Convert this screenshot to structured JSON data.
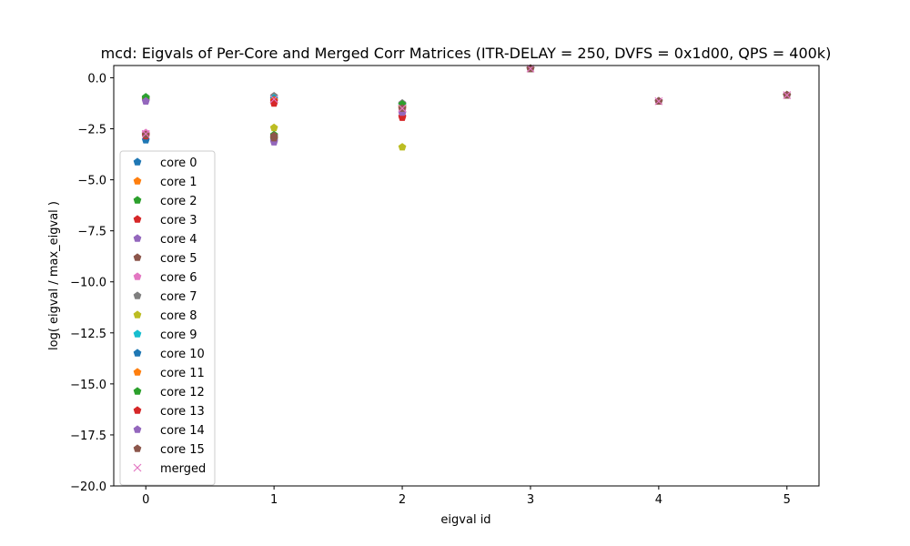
{
  "chart_data": {
    "type": "scatter",
    "title": "mcd: Eigvals of Per-Core and Merged Corr Matrices (ITR-DELAY = 250, DVFS = 0x1d00, QPS = 400k)",
    "xlabel": "eigval id",
    "ylabel": "log( eigval / max_eigval )",
    "xlim": [
      -0.25,
      5.25
    ],
    "ylim": [
      -20,
      0.6
    ],
    "xticks": [
      "0",
      "1",
      "2",
      "3",
      "4",
      "5"
    ],
    "yticks": [
      "0.0",
      "−2.5",
      "−5.0",
      "−7.5",
      "−10.0",
      "−12.5",
      "−15.0",
      "−17.5",
      "−20.0"
    ],
    "grid": false,
    "legend_position": "center-left",
    "series": [
      {
        "name": "core 0",
        "color": "#1f77b4",
        "marker": "pentagon",
        "x": [
          0,
          1,
          2,
          3,
          4,
          5
        ],
        "y": [
          -3.05,
          -2.9,
          -1.5,
          0.45,
          -1.15,
          -0.85
        ]
      },
      {
        "name": "core 1",
        "color": "#ff7f0e",
        "marker": "pentagon",
        "x": [
          0,
          1,
          2,
          3,
          4,
          5
        ],
        "y": [
          -2.75,
          -2.95,
          -1.55,
          0.45,
          -1.15,
          -0.85
        ]
      },
      {
        "name": "core 2",
        "color": "#2ca02c",
        "marker": "pentagon",
        "x": [
          0,
          1,
          2,
          3,
          4,
          5
        ],
        "y": [
          -0.95,
          -2.8,
          -1.3,
          0.45,
          -1.15,
          -0.85
        ]
      },
      {
        "name": "core 3",
        "color": "#d62728",
        "marker": "pentagon",
        "x": [
          0,
          1,
          2,
          3,
          4,
          5
        ],
        "y": [
          -2.85,
          -1.25,
          -1.95,
          0.45,
          -1.15,
          -0.85
        ]
      },
      {
        "name": "core 4",
        "color": "#9467bd",
        "marker": "pentagon",
        "x": [
          0,
          1,
          2,
          3,
          4,
          5
        ],
        "y": [
          -1.1,
          -3.15,
          -1.75,
          0.45,
          -1.15,
          -0.85
        ]
      },
      {
        "name": "core 5",
        "color": "#8c564b",
        "marker": "pentagon",
        "x": [
          0,
          1,
          2,
          3,
          4,
          5
        ],
        "y": [
          -2.75,
          -2.85,
          -1.45,
          0.45,
          -1.15,
          -0.85
        ]
      },
      {
        "name": "core 6",
        "color": "#e377c2",
        "marker": "pentagon",
        "x": [
          0,
          1,
          2,
          3,
          4,
          5
        ],
        "y": [
          -2.7,
          -3.05,
          -1.6,
          0.45,
          -1.15,
          -0.85
        ]
      },
      {
        "name": "core 7",
        "color": "#7f7f7f",
        "marker": "pentagon",
        "x": [
          0,
          1,
          2,
          3,
          4,
          5
        ],
        "y": [
          -1.05,
          -0.9,
          -1.25,
          0.45,
          -1.15,
          -0.85
        ]
      },
      {
        "name": "core 8",
        "color": "#bcbd22",
        "marker": "pentagon",
        "x": [
          0,
          1,
          2,
          3,
          4,
          5
        ],
        "y": [
          -1.0,
          -2.45,
          -3.4,
          0.45,
          -1.15,
          -0.85
        ]
      },
      {
        "name": "core 9",
        "color": "#17becf",
        "marker": "pentagon",
        "x": [
          0,
          1,
          2,
          3,
          4,
          5
        ],
        "y": [
          -1.0,
          -1.0,
          -1.35,
          0.45,
          -1.15,
          -0.85
        ]
      },
      {
        "name": "core 10",
        "color": "#1f77b4",
        "marker": "pentagon",
        "x": [
          0,
          1,
          2,
          3,
          4,
          5
        ],
        "y": [
          -1.1,
          -1.05,
          -1.4,
          0.45,
          -1.15,
          -0.85
        ]
      },
      {
        "name": "core 11",
        "color": "#ff7f0e",
        "marker": "pentagon",
        "x": [
          0,
          1,
          2,
          3,
          4,
          5
        ],
        "y": [
          -1.05,
          -1.1,
          -1.45,
          0.45,
          -1.15,
          -0.85
        ]
      },
      {
        "name": "core 12",
        "color": "#2ca02c",
        "marker": "pentagon",
        "x": [
          0,
          1,
          2,
          3,
          4,
          5
        ],
        "y": [
          -1.0,
          -3.0,
          -1.3,
          0.45,
          -1.15,
          -0.85
        ]
      },
      {
        "name": "core 13",
        "color": "#d62728",
        "marker": "pentagon",
        "x": [
          0,
          1,
          2,
          3,
          4,
          5
        ],
        "y": [
          -2.8,
          -1.15,
          -1.9,
          0.45,
          -1.15,
          -0.85
        ]
      },
      {
        "name": "core 14",
        "color": "#9467bd",
        "marker": "pentagon",
        "x": [
          0,
          1,
          2,
          3,
          4,
          5
        ],
        "y": [
          -1.15,
          -3.1,
          -1.7,
          0.45,
          -1.15,
          -0.85
        ]
      },
      {
        "name": "core 15",
        "color": "#8c564b",
        "marker": "pentagon",
        "x": [
          0,
          1,
          2,
          3,
          4,
          5
        ],
        "y": [
          -2.8,
          -2.95,
          -1.5,
          0.45,
          -1.15,
          -0.85
        ]
      },
      {
        "name": "merged",
        "color": "#e377c2",
        "marker": "x",
        "x": [
          0,
          1,
          2,
          3,
          4,
          5
        ],
        "y": [
          -2.75,
          -1.05,
          -1.5,
          0.45,
          -1.15,
          -0.85
        ]
      }
    ]
  }
}
